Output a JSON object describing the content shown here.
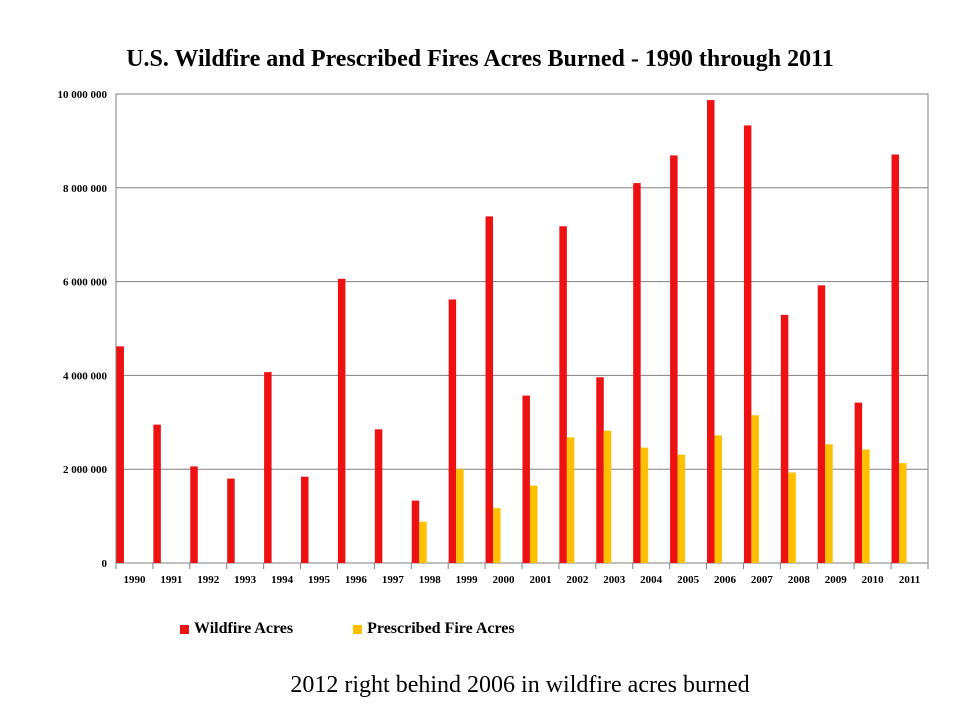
{
  "chart_data": {
    "type": "bar",
    "title": "U.S. Wildfire and Prescribed Fires Acres Burned - 1990 through 2011",
    "categories": [
      "1990",
      "1991",
      "1992",
      "1993",
      "1994",
      "1995",
      "1996",
      "1997",
      "1998",
      "1999",
      "2000",
      "2001",
      "2002",
      "2003",
      "2004",
      "2005",
      "2006",
      "2007",
      "2008",
      "2009",
      "2010",
      "2011"
    ],
    "series": [
      {
        "name": "Wildfire Acres",
        "color": "#ee1111",
        "values": [
          4620000,
          2950000,
          2060000,
          1800000,
          4070000,
          1840000,
          6060000,
          2850000,
          1330000,
          5620000,
          7390000,
          3570000,
          7180000,
          3960000,
          8100000,
          8690000,
          9870000,
          9330000,
          5290000,
          5920000,
          3420000,
          8710000
        ]
      },
      {
        "name": "Prescribed Fire Acres",
        "color": "#ffc000",
        "values": [
          0,
          0,
          0,
          0,
          0,
          0,
          0,
          0,
          880000,
          2000000,
          1170000,
          1650000,
          2680000,
          2820000,
          2460000,
          2310000,
          2720000,
          3150000,
          1930000,
          2530000,
          2420000,
          2130000
        ]
      }
    ],
    "ylim": [
      0,
      10000000
    ],
    "yticks": [
      0,
      2000000,
      4000000,
      6000000,
      8000000,
      10000000
    ],
    "ytick_labels": [
      "0",
      "2 000 000",
      "4 000 000",
      "6 000 000",
      "8 000 000",
      "10 000 000"
    ],
    "grid": true,
    "legend": "bottom"
  },
  "caption": "2012 right behind 2006 in wildfire acres burned"
}
